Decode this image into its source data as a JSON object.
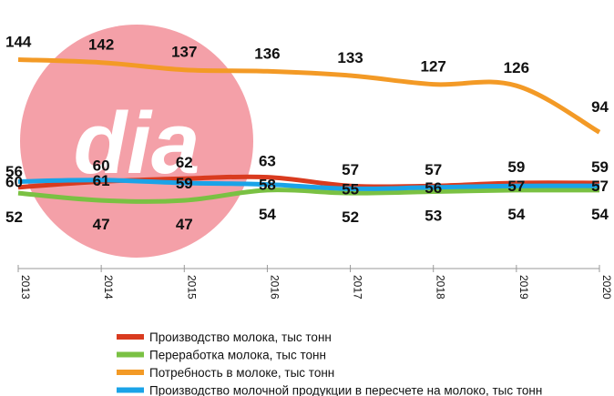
{
  "logo": {
    "text": "dia",
    "circle_color": "#f4a0a8"
  },
  "chart_data": {
    "type": "line",
    "x": [
      "2013",
      "2014",
      "2015",
      "2016",
      "2017",
      "2018",
      "2019",
      "2020"
    ],
    "ylim": [
      0,
      160
    ],
    "grid": false,
    "legend_position": "bottom",
    "series": [
      {
        "name": "Производство молока, тыс тонн",
        "color": "#d93b1f",
        "values": [
          56,
          60,
          62,
          63,
          57,
          57,
          59,
          59
        ]
      },
      {
        "name": "Переработка молока, тыс тонн",
        "color": "#7ac143",
        "values": [
          52,
          47,
          47,
          54,
          52,
          53,
          54,
          54
        ]
      },
      {
        "name": "Потребность в молоке, тыс тонн",
        "color": "#f39a26",
        "values": [
          144,
          142,
          137,
          136,
          133,
          127,
          126,
          94
        ]
      },
      {
        "name": "Производство молочной продукции в пересчете на молоко, тыс тонн",
        "color": "#1aa3e8",
        "values": [
          60,
          61,
          59,
          58,
          55,
          56,
          57,
          57
        ]
      }
    ]
  }
}
